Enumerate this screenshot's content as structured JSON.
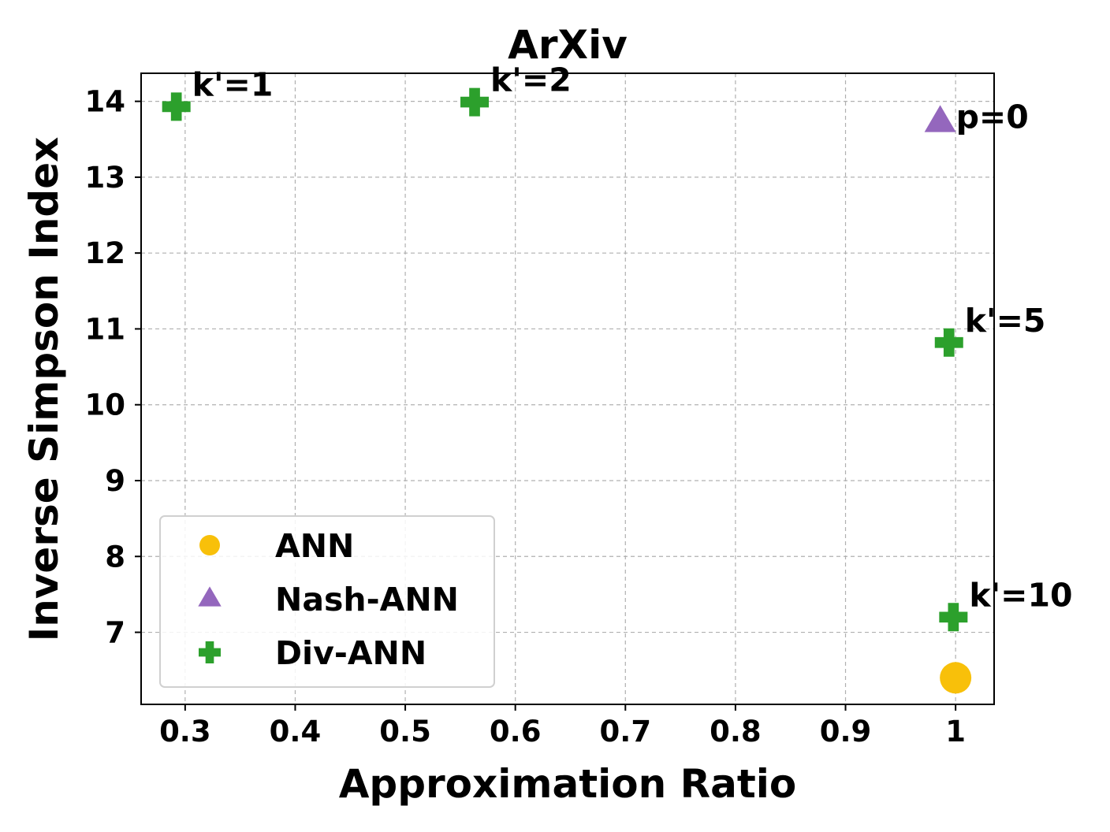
{
  "chart_data": {
    "type": "scatter",
    "title": "ArXiv",
    "xlabel": "Approximation Ratio",
    "ylabel": "Inverse Simpson Index",
    "xlim": [
      0.26,
      1.035
    ],
    "ylim": [
      6.05,
      14.37
    ],
    "grid": true,
    "legend_position": "lower-left",
    "x_ticks": [
      0.3,
      0.4,
      0.5,
      0.6,
      0.7,
      0.8,
      0.9,
      1.0
    ],
    "x_tick_labels": [
      "0.3",
      "0.4",
      "0.5",
      "0.6",
      "0.7",
      "0.8",
      "0.9",
      "1"
    ],
    "y_ticks": [
      7,
      8,
      9,
      10,
      11,
      12,
      13,
      14
    ],
    "y_tick_labels": [
      "7",
      "8",
      "9",
      "10",
      "11",
      "12",
      "13",
      "14"
    ],
    "series": [
      {
        "name": "ANN",
        "marker": "circle",
        "color": "#f8c00a",
        "points": [
          {
            "x": 1.0,
            "y": 6.4,
            "label": ""
          }
        ]
      },
      {
        "name": "Nash-ANN",
        "marker": "triangle",
        "color": "#9467bd",
        "points": [
          {
            "x": 0.986,
            "y": 13.73,
            "label": "p=0"
          }
        ]
      },
      {
        "name": "Div-ANN",
        "marker": "plus",
        "color": "#2ca02c",
        "points": [
          {
            "x": 0.292,
            "y": 13.93,
            "label": "k'=1"
          },
          {
            "x": 0.563,
            "y": 13.99,
            "label": "k'=2"
          },
          {
            "x": 0.994,
            "y": 10.82,
            "label": "k'=5"
          },
          {
            "x": 0.998,
            "y": 7.2,
            "label": "k'=10"
          }
        ]
      }
    ]
  }
}
